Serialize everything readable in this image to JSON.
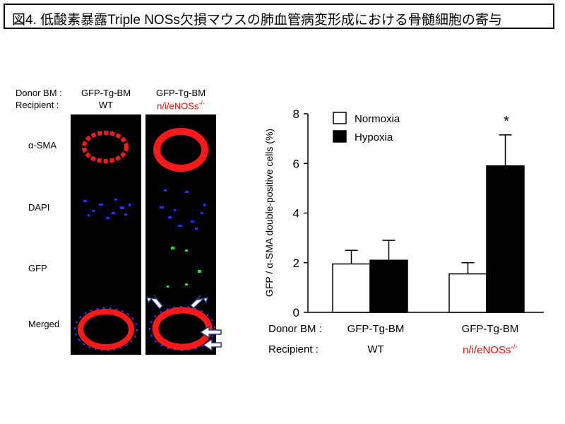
{
  "title": "図4. 低酸素暴露Triple NOSs欠損マウスの肺血管病変形成における骨髄細胞の寄与",
  "micrograph": {
    "donor_label": "Donor BM :",
    "recipient_label": "Recipient :",
    "columns": [
      {
        "donor": "GFP-Tg-BM",
        "recipient": "WT",
        "recipient_sup": ""
      },
      {
        "donor": "GFP-Tg-BM",
        "recipient": "n/i/eNOSs",
        "recipient_sup": "-/-"
      }
    ],
    "rows": [
      "α-SMA",
      "DAPI",
      "GFP",
      "Merged"
    ]
  },
  "chart_data": {
    "type": "bar",
    "ylabel": "GFP / α-SMA double-positive cells (%)",
    "ylim": [
      0,
      8
    ],
    "yticks": [
      "0",
      "2",
      "4",
      "6",
      "8"
    ],
    "legend": [
      {
        "name": "Normoxia",
        "color": "#ffffff"
      },
      {
        "name": "Hypoxia",
        "color": "#000000"
      }
    ],
    "legend_position": "top-left",
    "groups": [
      {
        "donor": "GFP-Tg-BM",
        "recipient": "WT",
        "recipient_sup": ""
      },
      {
        "donor": "GFP-Tg-BM",
        "recipient": "n/i/eNOSs",
        "recipient_sup": "-/-"
      }
    ],
    "series": [
      {
        "name": "Normoxia",
        "values": [
          1.95,
          1.55
        ],
        "errors": [
          0.55,
          0.45
        ]
      },
      {
        "name": "Hypoxia",
        "values": [
          2.1,
          5.9
        ],
        "errors": [
          0.8,
          1.25
        ]
      }
    ],
    "annotation": "*",
    "x_donor_label": "Donor BM :",
    "x_recipient_label": "Recipient :"
  }
}
